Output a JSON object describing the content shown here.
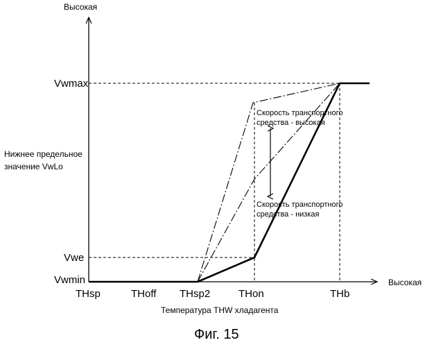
{
  "y_axis": {
    "top_label": "Высокая",
    "left_caption_line1": "Нижнее предельное",
    "left_caption_line2": "значение VwLo",
    "ticks": {
      "vwmax": "Vwmax",
      "vwe": "Vwe",
      "vwmin": "Vwmin"
    }
  },
  "x_axis": {
    "right_label": "Высокая",
    "caption": "Температура THW хладагента",
    "ticks": {
      "thsp": "THsp",
      "thoff": "THoff",
      "thsp2": "THsp2",
      "thon": "THon",
      "thb": "THb"
    }
  },
  "annotations": {
    "high_speed_line1": "Скорость транспортного",
    "high_speed_line2": "средства - высокая",
    "low_speed_line1": "Скорость транспортного",
    "low_speed_line2": "средства - низкая"
  },
  "figure_caption": "Фиг. 15",
  "line_color": "#000000"
}
